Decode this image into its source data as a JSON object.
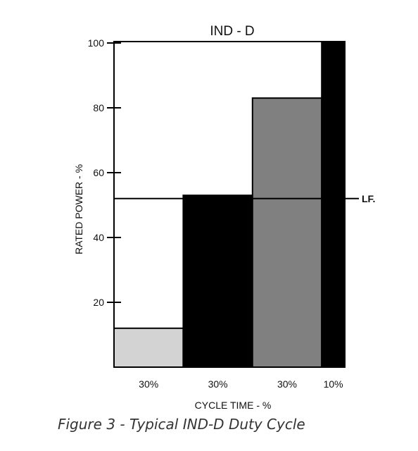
{
  "chart_data": {
    "type": "bar",
    "title": "IND - D",
    "xlabel": "CYCLE TIME - %",
    "ylabel": "RATED POWER - %",
    "ylim": [
      0,
      100
    ],
    "yticks": [
      20,
      40,
      60,
      80,
      100
    ],
    "grid": false,
    "categories": [
      "30%",
      "30%",
      "30%",
      "10%"
    ],
    "widths": [
      30,
      30,
      30,
      10
    ],
    "values": [
      12,
      53,
      83,
      100
    ],
    "bar_colors": [
      "#d3d3d3",
      "#000000",
      "#808080",
      "#000000"
    ],
    "reference_line": {
      "label": "LF.",
      "value": 52
    }
  },
  "caption": "Figure 3 - Typical IND-D Duty Cycle"
}
